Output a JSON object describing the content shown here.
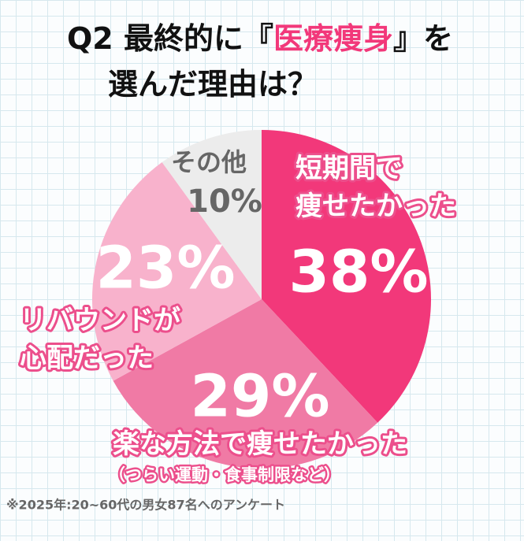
{
  "chart_data": {
    "type": "pie",
    "title": [
      [
        {
          "text": "Q2 最終的に『"
        },
        {
          "text": "医療痩身",
          "highlight": true
        },
        {
          "text": "』を"
        }
      ],
      [
        {
          "text": "選んだ理由は？"
        }
      ]
    ],
    "categories": [
      "短期間で\n痩せたかった",
      "楽な方法で痩せたかった",
      "リバウンドが\n心配だった",
      "その他"
    ],
    "values": [
      38,
      29,
      23,
      10
    ],
    "value_labels": [
      "38%",
      "29%",
      "23%",
      "10%"
    ],
    "colors": [
      "#f2387a",
      "#f07aa5",
      "#f8b2cc",
      "#ececec"
    ],
    "annotation": "（つらい運動・食事制限など）",
    "footnote": "※2025年:20~60代の男女87名へのアンケート"
  }
}
